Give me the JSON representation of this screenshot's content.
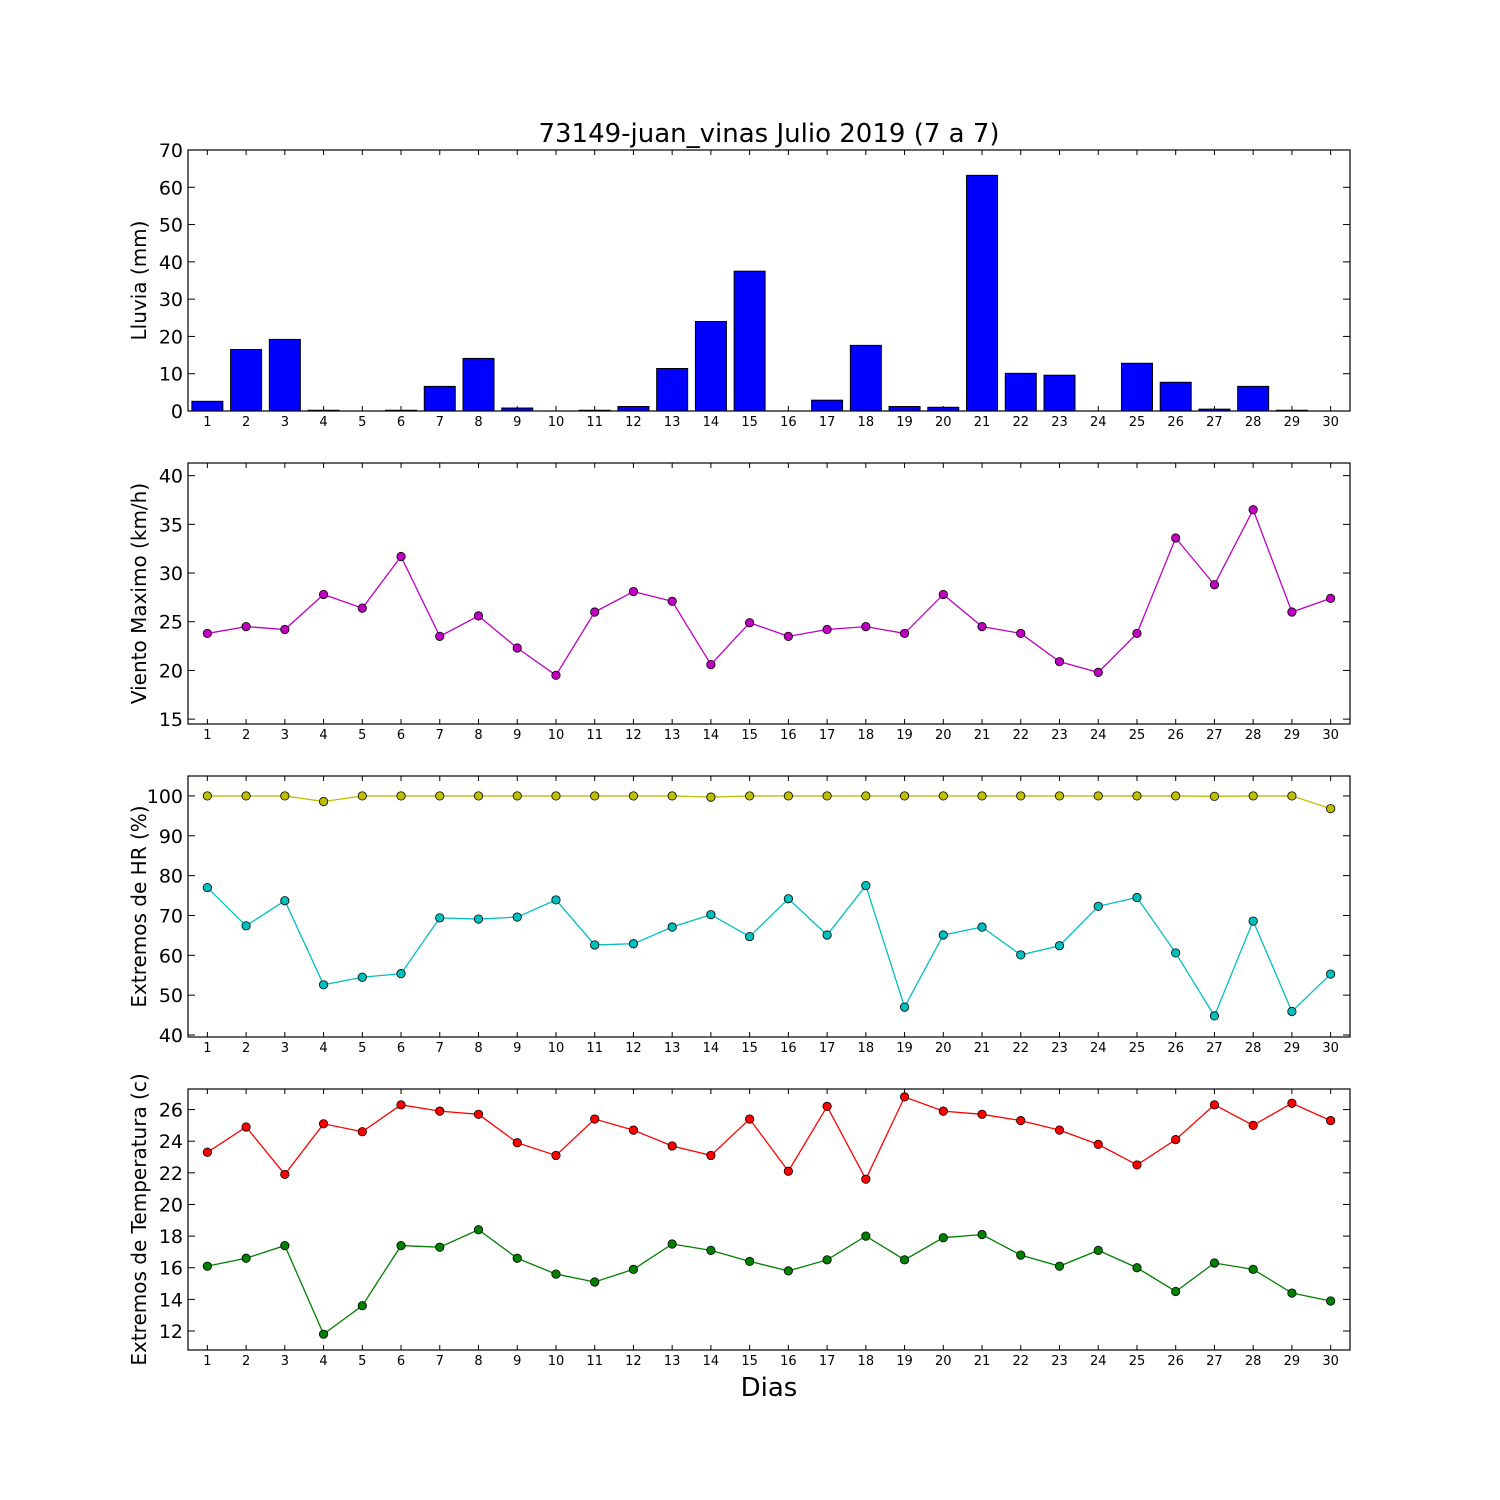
{
  "figure": {
    "title": "73149-juan_vinas Julio 2019  (7 a 7)",
    "xlabel": "Dias"
  },
  "chart_data": [
    {
      "type": "bar",
      "ylabel": "Lluvia (mm)",
      "ylim": [
        0,
        70
      ],
      "yticks": [
        0,
        10,
        20,
        30,
        40,
        50,
        60,
        70
      ],
      "categories": [
        "1",
        "2",
        "3",
        "4",
        "5",
        "6",
        "7",
        "8",
        "9",
        "10",
        "11",
        "12",
        "13",
        "14",
        "15",
        "16",
        "17",
        "18",
        "19",
        "20",
        "21",
        "22",
        "23",
        "24",
        "25",
        "26",
        "27",
        "28",
        "29",
        "30"
      ],
      "series": [
        {
          "color": "#0000ff",
          "values": [
            2.6,
            16.5,
            19.2,
            0.2,
            0.0,
            0.2,
            6.6,
            14.1,
            0.8,
            0.0,
            0.2,
            1.2,
            11.4,
            24.0,
            37.5,
            0.0,
            2.9,
            17.6,
            1.2,
            1.0,
            63.2,
            10.1,
            9.6,
            0.0,
            12.8,
            7.7,
            0.5,
            6.6,
            0.2,
            0.0
          ]
        }
      ]
    },
    {
      "type": "line",
      "ylabel": "Viento Maximo (km/h)",
      "ylim": [
        14.5,
        41.3
      ],
      "yticks": [
        15,
        20,
        25,
        30,
        35,
        40
      ],
      "categories": [
        "1",
        "2",
        "3",
        "4",
        "5",
        "6",
        "7",
        "8",
        "9",
        "10",
        "11",
        "12",
        "13",
        "14",
        "15",
        "16",
        "17",
        "18",
        "19",
        "20",
        "21",
        "22",
        "23",
        "24",
        "25",
        "26",
        "27",
        "28",
        "29",
        "30"
      ],
      "series": [
        {
          "color": "#bf00bf",
          "values": [
            23.8,
            24.5,
            24.2,
            27.8,
            26.4,
            31.7,
            23.5,
            25.6,
            22.3,
            19.5,
            26.0,
            28.1,
            27.1,
            20.6,
            24.9,
            23.5,
            24.2,
            24.5,
            23.8,
            27.8,
            24.5,
            23.8,
            20.9,
            19.8,
            23.8,
            33.6,
            28.8,
            36.5,
            26.0,
            27.4
          ]
        }
      ]
    },
    {
      "type": "line",
      "ylabel": "Extremos de HR (%)",
      "ylim": [
        39.5,
        105
      ],
      "yticks": [
        40,
        50,
        60,
        70,
        80,
        90,
        100
      ],
      "categories": [
        "1",
        "2",
        "3",
        "4",
        "5",
        "6",
        "7",
        "8",
        "9",
        "10",
        "11",
        "12",
        "13",
        "14",
        "15",
        "16",
        "17",
        "18",
        "19",
        "20",
        "21",
        "22",
        "23",
        "24",
        "25",
        "26",
        "27",
        "28",
        "29",
        "30"
      ],
      "series": [
        {
          "color": "#bfbf00",
          "values": [
            100,
            100,
            100,
            98.6,
            100,
            100,
            100,
            100,
            100,
            100,
            100,
            100,
            100,
            99.7,
            100,
            100,
            100,
            100,
            100,
            100,
            100,
            100,
            100,
            100,
            100,
            100,
            99.9,
            100,
            100,
            96.8
          ]
        },
        {
          "color": "#00bfbf",
          "values": [
            77.0,
            67.4,
            73.7,
            52.6,
            54.5,
            55.4,
            69.4,
            69.1,
            69.6,
            73.9,
            62.6,
            62.9,
            67.1,
            70.2,
            64.7,
            74.2,
            65.1,
            77.5,
            47.0,
            65.1,
            67.1,
            60.1,
            62.4,
            72.3,
            74.5,
            60.6,
            44.8,
            68.6,
            45.9,
            55.3
          ]
        }
      ]
    },
    {
      "type": "line",
      "ylabel": "Extremos de Temperatura (c)",
      "ylim": [
        10.8,
        27.3
      ],
      "yticks": [
        12,
        14,
        16,
        18,
        20,
        22,
        24,
        26
      ],
      "categories": [
        "1",
        "2",
        "3",
        "4",
        "5",
        "6",
        "7",
        "8",
        "9",
        "10",
        "11",
        "12",
        "13",
        "14",
        "15",
        "16",
        "17",
        "18",
        "19",
        "20",
        "21",
        "22",
        "23",
        "24",
        "25",
        "26",
        "27",
        "28",
        "29",
        "30"
      ],
      "series": [
        {
          "color": "#ff0000",
          "values": [
            23.3,
            24.9,
            21.9,
            25.1,
            24.6,
            26.3,
            25.9,
            25.7,
            23.9,
            23.1,
            25.4,
            24.7,
            23.7,
            23.1,
            25.4,
            22.1,
            26.2,
            21.6,
            26.8,
            25.9,
            25.7,
            25.3,
            24.7,
            23.8,
            22.5,
            24.1,
            26.3,
            25.0,
            26.4,
            25.3
          ]
        },
        {
          "color": "#008000",
          "values": [
            16.1,
            16.6,
            17.4,
            11.8,
            13.6,
            17.4,
            17.3,
            18.4,
            16.6,
            15.6,
            15.1,
            15.9,
            17.5,
            17.1,
            16.4,
            15.8,
            16.5,
            18.0,
            16.5,
            17.9,
            18.1,
            16.8,
            16.1,
            17.1,
            16.0,
            14.5,
            16.3,
            15.9,
            14.4,
            13.9
          ]
        }
      ]
    }
  ]
}
